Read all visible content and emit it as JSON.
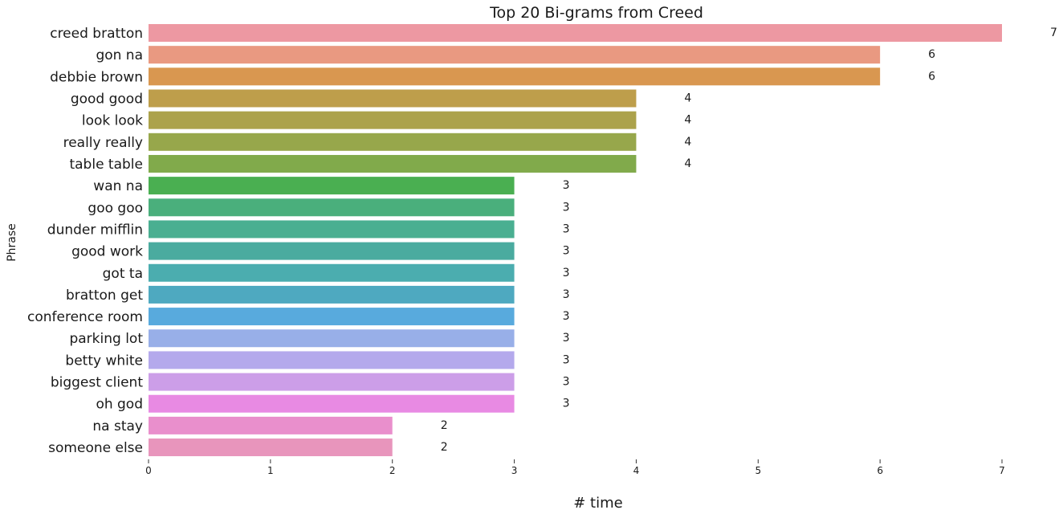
{
  "chart_data": {
    "type": "bar",
    "orientation": "horizontal",
    "title": "Top 20 Bi-grams from Creed",
    "xlabel": "# time",
    "ylabel": "Phrase",
    "xlim": [
      0,
      7
    ],
    "x_ticks": [
      0,
      1,
      2,
      3,
      4,
      5,
      6,
      7
    ],
    "grid": false,
    "categories": [
      "creed bratton",
      "gon na",
      "debbie brown",
      "good good",
      "look look",
      "really really",
      "table table",
      "wan na",
      "goo goo",
      "dunder mifflin",
      "good work",
      "got ta",
      "bratton get",
      "conference room",
      "parking lot",
      "betty white",
      "biggest client",
      "oh god",
      "na stay",
      "someone else"
    ],
    "values": [
      7,
      6,
      6,
      4,
      4,
      4,
      4,
      3,
      3,
      3,
      3,
      3,
      3,
      3,
      3,
      3,
      3,
      3,
      2,
      2
    ],
    "data_labels": [
      "7",
      "6",
      "6",
      "4",
      "4",
      "4",
      "4",
      "3",
      "3",
      "3",
      "3",
      "3",
      "3",
      "3",
      "3",
      "3",
      "3",
      "3",
      "2",
      "2"
    ],
    "colors": [
      "#ed98a2",
      "#e99981",
      "#d99750",
      "#be9e4b",
      "#aca24b",
      "#97a74b",
      "#81aa4b",
      "#4aaf51",
      "#4aaf7c",
      "#4aaf91",
      "#4aab9f",
      "#4badaf",
      "#4ea9c0",
      "#58aadd",
      "#98afe8",
      "#b4a9ec",
      "#cc9ee8",
      "#e88ae3",
      "#e98fcc",
      "#e895bc"
    ]
  }
}
